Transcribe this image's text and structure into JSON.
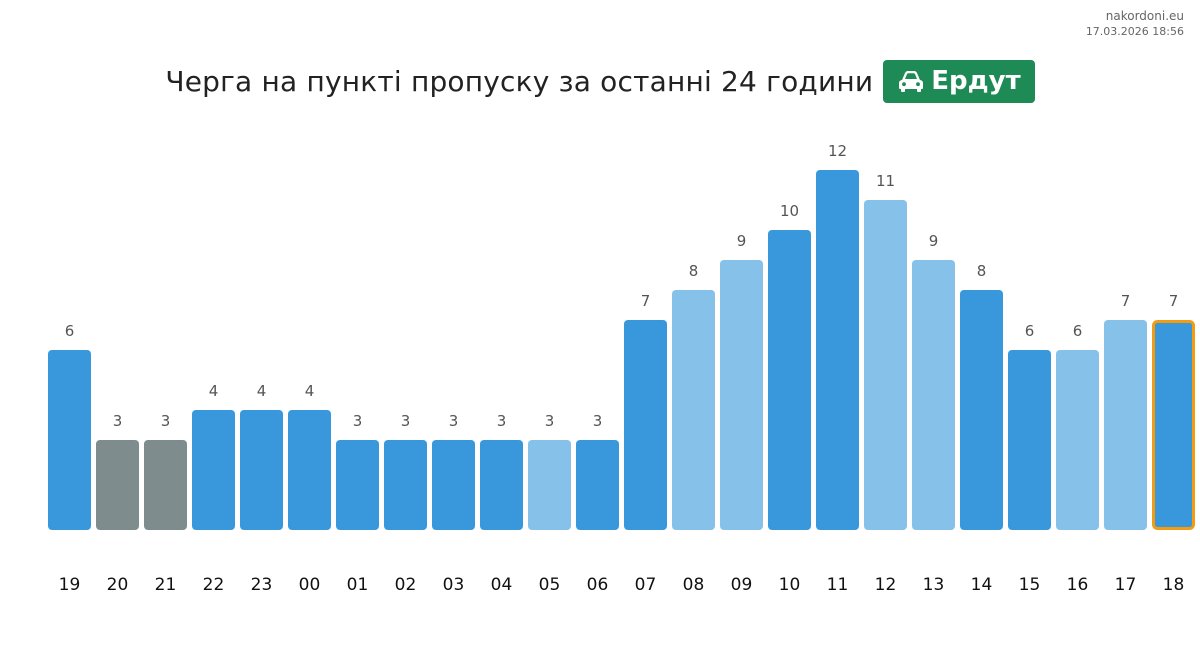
{
  "source": {
    "domain": "nakordoni.eu",
    "timestamp": "17.03.2026 18:56"
  },
  "header": {
    "title": "Черга на пункті пропуску за останні 24 години",
    "checkpoint": "Ердут",
    "checkpoint_icon": "car-icon",
    "badge_color": "#1e8a55"
  },
  "chart_data": {
    "type": "bar",
    "title": "Черга на пункті пропуску за останні 24 години",
    "xlabel": "",
    "ylabel": "",
    "ylim": [
      0,
      12
    ],
    "grid": false,
    "categories": [
      "19",
      "20",
      "21",
      "22",
      "23",
      "00",
      "01",
      "02",
      "03",
      "04",
      "05",
      "06",
      "07",
      "08",
      "09",
      "10",
      "11",
      "12",
      "13",
      "14",
      "15",
      "16",
      "17",
      "18"
    ],
    "values": [
      6,
      3,
      3,
      4,
      4,
      4,
      3,
      3,
      3,
      3,
      3,
      3,
      7,
      8,
      9,
      10,
      12,
      11,
      9,
      8,
      6,
      6,
      7,
      7
    ],
    "bar_styles": [
      "dark",
      "gray",
      "gray",
      "dark",
      "dark",
      "dark",
      "dark",
      "dark",
      "dark",
      "dark",
      "light",
      "dark",
      "dark",
      "light",
      "light",
      "dark",
      "dark",
      "light",
      "light",
      "dark",
      "dark",
      "light",
      "light",
      "current"
    ],
    "colors": {
      "dark": "#3898db",
      "light": "#85c1e9",
      "gray": "#7f8c8d",
      "current": "#3898db",
      "current_border": "#f39c12",
      "value_label": "#555555",
      "tick_label": "#111111"
    }
  }
}
